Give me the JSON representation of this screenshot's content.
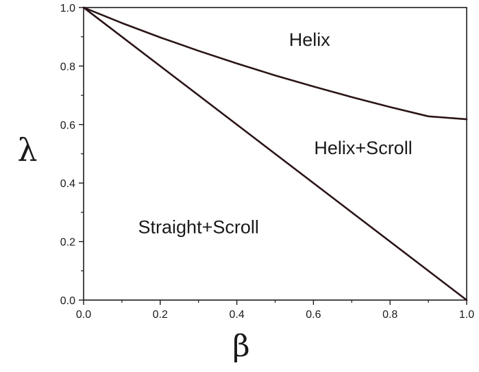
{
  "chart_data": {
    "type": "line",
    "title": "",
    "xlabel": "β",
    "ylabel": "λ",
    "xlim": [
      0.0,
      1.0
    ],
    "ylim": [
      0.0,
      1.0
    ],
    "x_ticks": [
      "0.0",
      "0.2",
      "0.4",
      "0.6",
      "0.8",
      "1.0"
    ],
    "y_ticks": [
      "0.0",
      "0.2",
      "0.4",
      "0.6",
      "0.8",
      "1.0"
    ],
    "grid": false,
    "legend": "none",
    "line_color": "#2a1416",
    "series": [
      {
        "x": [
          0.0,
          0.1,
          0.2,
          0.3,
          0.4,
          0.5,
          0.6,
          0.7,
          0.8,
          0.9,
          1.0
        ],
        "y": [
          1.0,
          0.947,
          0.898,
          0.852,
          0.809,
          0.768,
          0.73,
          0.694,
          0.66,
          0.628,
          0.618
        ]
      },
      {
        "x": [
          0.0,
          1.0
        ],
        "y": [
          1.0,
          0.0
        ]
      }
    ],
    "annotations": [
      {
        "text": "Helix",
        "x": 0.59,
        "y": 0.89
      },
      {
        "text": "Helix+Scroll",
        "x": 0.73,
        "y": 0.52
      },
      {
        "text": "Straight+Scroll",
        "x": 0.3,
        "y": 0.25
      }
    ]
  }
}
